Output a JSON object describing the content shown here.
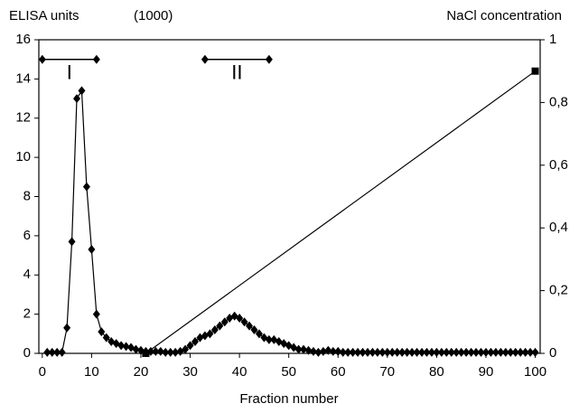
{
  "chart_data": {
    "type": "line",
    "y_title": "ELISA units",
    "y_unit": "(1000)",
    "y2_title": "NaCl concentration",
    "x_title": "Fraction number",
    "xlim": [
      -0.7,
      101
    ],
    "xticks": [
      0,
      10,
      20,
      30,
      40,
      50,
      60,
      70,
      80,
      90,
      100
    ],
    "ylim": [
      0,
      16
    ],
    "yticks": [
      0,
      2,
      4,
      6,
      8,
      10,
      12,
      14,
      16
    ],
    "y2lim": [
      0,
      1
    ],
    "y2ticks": [
      0,
      {
        "value": 0.2,
        "label": "0,2"
      },
      {
        "value": 0.4,
        "label": "0,4"
      },
      {
        "value": 0.6,
        "label": "0,6"
      },
      {
        "value": 0.8,
        "label": "0,8"
      },
      1
    ],
    "series": [
      {
        "name": "ELISA units",
        "color": "#000000",
        "marker": "diamond",
        "x": [
          1,
          2,
          3,
          4,
          5,
          6,
          7,
          8,
          9,
          10,
          11,
          12,
          13,
          14,
          15,
          16,
          17,
          18,
          19,
          20,
          21,
          22,
          23,
          24,
          25,
          26,
          27,
          28,
          29,
          30,
          31,
          32,
          33,
          34,
          35,
          36,
          37,
          38,
          39,
          40,
          41,
          42,
          43,
          44,
          45,
          46,
          47,
          48,
          49,
          50,
          51,
          52,
          53,
          54,
          55,
          56,
          57,
          58,
          59,
          60,
          61,
          62,
          63,
          64,
          65,
          66,
          67,
          68,
          69,
          70,
          71,
          72,
          73,
          74,
          75,
          76,
          77,
          78,
          79,
          80,
          81,
          82,
          83,
          84,
          85,
          86,
          87,
          88,
          89,
          90,
          91,
          92,
          93,
          94,
          95,
          96,
          97,
          98,
          99,
          100
        ],
        "values": [
          0.05,
          0.05,
          0.05,
          0.05,
          1.3,
          5.7,
          13,
          13.4,
          8.5,
          5.3,
          2,
          1.1,
          0.8,
          0.6,
          0.5,
          0.4,
          0.35,
          0.3,
          0.2,
          0.15,
          0.1,
          0.1,
          0.1,
          0.1,
          0.05,
          0.05,
          0.05,
          0.1,
          0.2,
          0.4,
          0.6,
          0.8,
          0.9,
          1.0,
          1.2,
          1.4,
          1.6,
          1.8,
          1.9,
          1.8,
          1.6,
          1.4,
          1.2,
          1.0,
          0.8,
          0.7,
          0.7,
          0.6,
          0.5,
          0.4,
          0.3,
          0.2,
          0.2,
          0.15,
          0.1,
          0.05,
          0.1,
          0.15,
          0.1,
          0.1,
          0.05,
          0.05,
          0.05,
          0.05,
          0.05,
          0.05,
          0.05,
          0.05,
          0.05,
          0.05,
          0.05,
          0.05,
          0.05,
          0.05,
          0.05,
          0.05,
          0.05,
          0.05,
          0.05,
          0.05,
          0.05,
          0.05,
          0.05,
          0.05,
          0.05,
          0.05,
          0.05,
          0.05,
          0.05,
          0.05,
          0.05,
          0.05,
          0.05,
          0.05,
          0.05,
          0.05,
          0.05,
          0.05,
          0.05,
          0.05
        ]
      },
      {
        "name": "NaCl concentration",
        "color": "#000000",
        "axis": "y2",
        "marker": "square",
        "x": [
          21,
          100
        ],
        "values": [
          0,
          0.9
        ]
      }
    ],
    "ranges": [
      {
        "label": "I",
        "start": 0,
        "end": 11,
        "y": 15
      },
      {
        "label": "II",
        "start": 33,
        "end": 46,
        "y": 15
      }
    ]
  }
}
